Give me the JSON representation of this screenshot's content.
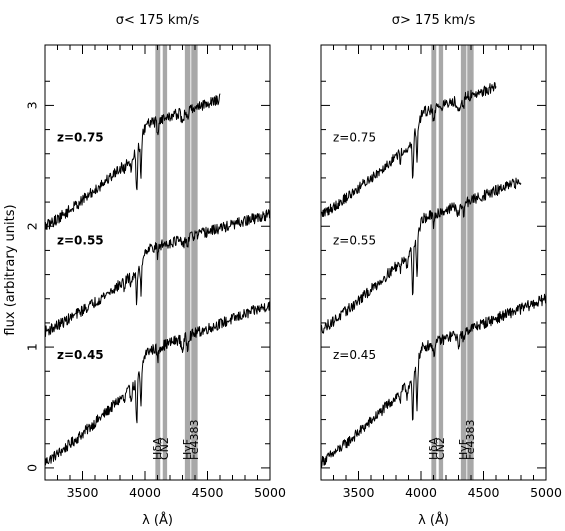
{
  "figure": {
    "ylabel": "flux (arbitrary units)",
    "xlabel": "λ (Å)"
  },
  "chart_data": [
    {
      "type": "line",
      "title": "σ< 175 km/s",
      "xlabel": "λ (Å)",
      "ylabel": "flux (arbitrary units)",
      "xlim": [
        3200,
        5000
      ],
      "ylim": [
        -0.1,
        3.5
      ],
      "xticks": [
        "3500",
        "4000",
        "4500",
        "5000"
      ],
      "yticks": [
        "0",
        "1",
        "2",
        "3"
      ],
      "bands": [
        {
          "name": "Hδ",
          "x": [
            4083,
            4122
          ]
        },
        {
          "name": "CN2",
          "x": [
            4142,
            4177
          ]
        },
        {
          "name": "HγF",
          "x": [
            4319,
            4363
          ]
        },
        {
          "name": "Fe4383",
          "x": [
            4370,
            4421
          ]
        }
      ],
      "index_labels": [
        "HδA",
        "CN2",
        "HγF",
        "Fe4383"
      ],
      "series": [
        {
          "name": "z=0.45",
          "x_range": [
            3200,
            5000
          ],
          "y_start": 0.05,
          "y_end": 1.35,
          "label_y": 0.9
        },
        {
          "name": "z=0.55",
          "x_range": [
            3200,
            5000
          ],
          "y_start": 1.13,
          "y_end": 2.1,
          "label_y": 1.85
        },
        {
          "name": "z=0.75",
          "x_range": [
            3200,
            4600
          ],
          "y_start": 2.0,
          "y_end": 3.2,
          "label_y": 2.7
        }
      ]
    },
    {
      "type": "line",
      "title": "σ> 175 km/s",
      "xlabel": "λ (Å)",
      "xlim": [
        3200,
        5000
      ],
      "ylim": [
        -0.1,
        3.5
      ],
      "xticks": [
        "3500",
        "4000",
        "4500",
        "5000"
      ],
      "bands": [
        {
          "name": "Hδ",
          "x": [
            4083,
            4122
          ]
        },
        {
          "name": "CN2",
          "x": [
            4142,
            4177
          ]
        },
        {
          "name": "HγF",
          "x": [
            4319,
            4363
          ]
        },
        {
          "name": "Fe4383",
          "x": [
            4370,
            4421
          ]
        }
      ],
      "index_labels": [
        "HδA",
        "CN2",
        "HγF",
        "Fe4383"
      ],
      "series": [
        {
          "name": "z=0.45",
          "x_range": [
            3200,
            5000
          ],
          "y_start": 0.05,
          "y_end": 1.4,
          "label_y": 0.9
        },
        {
          "name": "z=0.55",
          "x_range": [
            3200,
            4800
          ],
          "y_start": 1.15,
          "y_end": 2.45,
          "label_y": 1.85
        },
        {
          "name": "z=0.75",
          "x_range": [
            3200,
            4600
          ],
          "y_start": 2.1,
          "y_end": 3.3,
          "label_y": 2.7
        }
      ]
    }
  ]
}
